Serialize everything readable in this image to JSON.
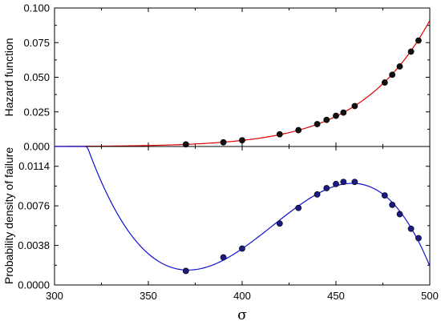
{
  "chart_data": [
    {
      "type": "scatter",
      "panel": "top",
      "ylabel": "Hazard function",
      "xlim": [
        300,
        500
      ],
      "ylim": [
        0,
        0.1
      ],
      "x_ticks": [
        300,
        350,
        400,
        450,
        500
      ],
      "y_ticks": [
        0.0,
        0.025,
        0.05,
        0.075,
        0.1
      ],
      "y_tick_labels": [
        "0.000",
        "0.025",
        "0.050",
        "0.075",
        "0.100"
      ],
      "curve_color": "#e00000",
      "point_color": "#111111",
      "points": {
        "x": [
          370,
          390,
          400,
          420,
          430,
          440,
          445,
          450,
          454,
          460,
          476,
          480,
          484,
          490,
          494
        ],
        "y": [
          0.0015,
          0.003,
          0.0045,
          0.0088,
          0.0118,
          0.0162,
          0.0192,
          0.0222,
          0.0245,
          0.0292,
          0.0462,
          0.0518,
          0.0578,
          0.0685,
          0.0765
        ]
      }
    },
    {
      "type": "scatter",
      "panel": "bottom",
      "xlabel": "σ",
      "ylabel": "Probability density of failure",
      "xlim": [
        300,
        500
      ],
      "ylim": [
        0,
        0.0133
      ],
      "x_ticks": [
        300,
        350,
        400,
        450,
        500
      ],
      "x_tick_labels": [
        "300",
        "350",
        "400",
        "450",
        "500"
      ],
      "y_ticks": [
        0,
        0.0038,
        0.0076,
        0.0114
      ],
      "y_tick_labels": [
        "0.0000",
        "0.0038",
        "0.0076",
        "0.0114"
      ],
      "curve_color": "#1010d0",
      "point_color": "#1a1a80",
      "points": {
        "x": [
          370,
          390,
          400,
          420,
          430,
          440,
          445,
          450,
          454,
          460,
          476,
          480,
          484,
          490,
          494
        ],
        "y": [
          0.00135,
          0.00265,
          0.0035,
          0.0059,
          0.0074,
          0.0087,
          0.0093,
          0.0097,
          0.0099,
          0.0099,
          0.0086,
          0.0077,
          0.0068,
          0.0054,
          0.0045
        ]
      }
    }
  ]
}
